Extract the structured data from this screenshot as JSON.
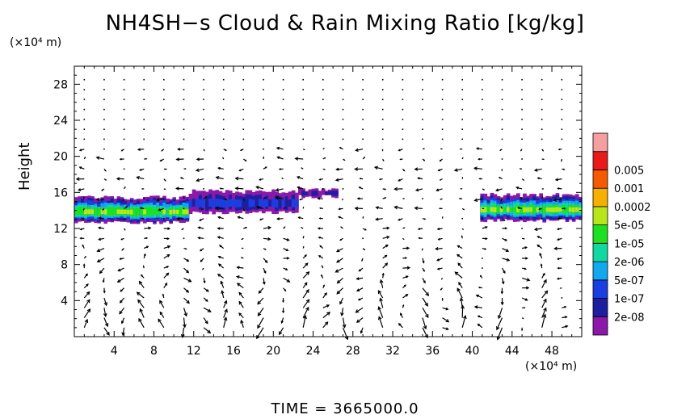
{
  "chart_data": {
    "type": "heatmap",
    "title": "NH4SH−s Cloud & Rain Mixing Ratio [kg/kg]",
    "ylabel": "Height",
    "x_unit": "(×10⁴ m)",
    "y_unit": "(×10⁴ m)",
    "xlim": [
      0,
      51
    ],
    "ylim": [
      0,
      30
    ],
    "x_ticks": [
      4,
      8,
      12,
      16,
      20,
      24,
      28,
      32,
      36,
      40,
      44,
      48
    ],
    "y_ticks": [
      4,
      8,
      12,
      16,
      20,
      24,
      28
    ],
    "footer": "TIME = 3665000.0",
    "colorbar": {
      "levels": [
        "2e-08",
        "1e-07",
        "5e-07",
        "2e-06",
        "1e-05",
        "5e-05",
        "0.0002",
        "0.001",
        "0.005"
      ],
      "colors": [
        "#8a18a8",
        "#1e1ea0",
        "#1a3fe0",
        "#12a8ee",
        "#10d8a0",
        "#1ce020",
        "#b8e61a",
        "#f5b000",
        "#f55a00",
        "#e81a1a",
        "#f5a0a0"
      ]
    },
    "cloud_layers": [
      {
        "x_start": 0,
        "x_end": 11.5,
        "z_bottom": 12.7,
        "z_top": 15.3,
        "level_index_max": 6
      },
      {
        "x_start": 11.5,
        "x_end": 22.5,
        "z_bottom": 13.8,
        "z_top": 16.0,
        "level_index_max": 2
      },
      {
        "x_start": 22.5,
        "x_end": 26.5,
        "z_bottom": 15.6,
        "z_top": 16.3,
        "level_index_max": 1
      },
      {
        "x_start": 40.8,
        "x_end": 51,
        "z_bottom": 12.9,
        "z_top": 15.6,
        "level_index_max": 6
      }
    ],
    "wind_vectors": "grid of arrows over full domain"
  }
}
